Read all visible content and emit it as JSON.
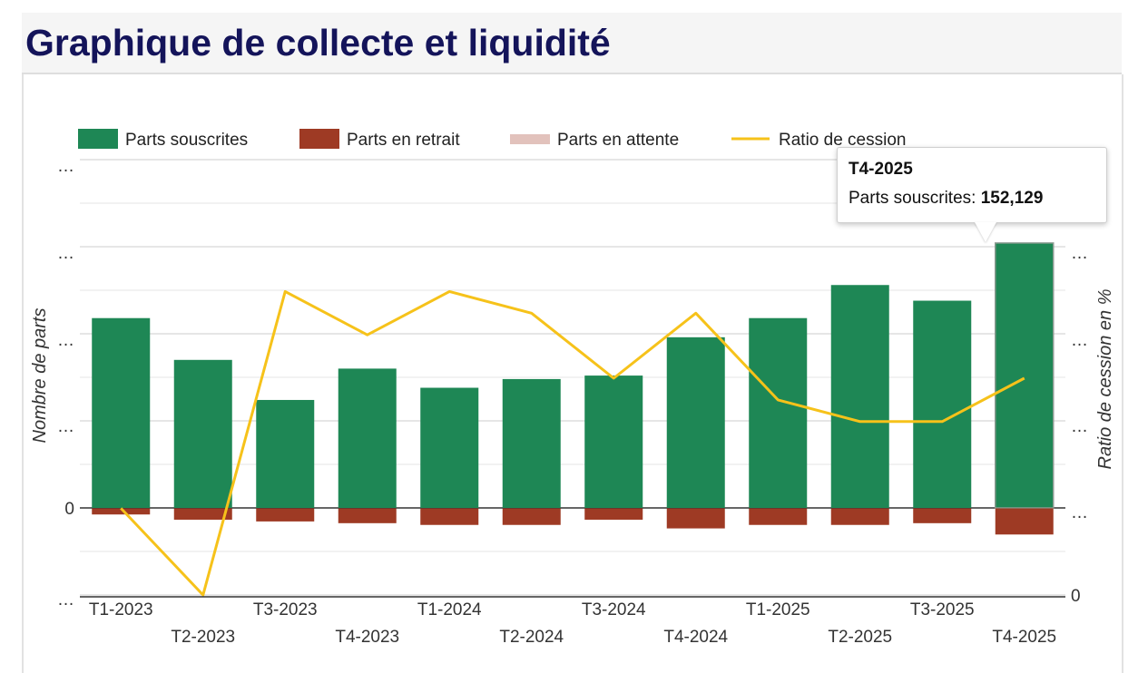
{
  "title": "Graphique de collecte et liquidité",
  "legend": [
    {
      "label": "Parts souscrites",
      "color": "#1e8755"
    },
    {
      "label": "Parts en retrait",
      "color": "#9e3a24"
    },
    {
      "label": "Parts en attente",
      "color": "#e2c2bc"
    },
    {
      "label": "Ratio de cession",
      "color": "#f6c21a"
    }
  ],
  "axes": {
    "left_title": "Nombre de parts",
    "right_title": "Ratio de cession en %",
    "left_ticks": [
      "…",
      "…",
      "…",
      "…",
      "0",
      "…"
    ],
    "right_ticks": [
      "…",
      "…",
      "…",
      "…",
      "0"
    ]
  },
  "tooltip": {
    "title": "T4-2025",
    "label": "Parts souscrites:",
    "value": "152,129"
  },
  "chart_data": {
    "type": "bar",
    "title": "Graphique de collecte et liquidité",
    "categories": [
      "T1-2023",
      "T2-2023",
      "T3-2023",
      "T4-2023",
      "T1-2024",
      "T2-2024",
      "T3-2024",
      "T4-2024",
      "T1-2025",
      "T2-2025",
      "T3-2025",
      "T4-2025"
    ],
    "ylim": [
      -50000,
      200000
    ],
    "y2lim": [
      0,
      100
    ],
    "series": [
      {
        "name": "Parts souscrites",
        "type": "bar",
        "stacked": true,
        "color": "#1e8755",
        "values": [
          109000,
          85000,
          62000,
          80000,
          69000,
          74000,
          76000,
          98000,
          109000,
          128000,
          119000,
          152129
        ]
      },
      {
        "name": "Parts en retrait",
        "type": "bar",
        "stacked": true,
        "color": "#9e3a24",
        "values": [
          -3500,
          -6500,
          -7500,
          -8500,
          -9500,
          -9500,
          -6500,
          -11500,
          -9500,
          -9500,
          -8500,
          -15000
        ]
      },
      {
        "name": "Parts en attente",
        "type": "bar",
        "stacked": true,
        "color": "#e2c2bc",
        "values": [
          0,
          0,
          0,
          0,
          0,
          0,
          0,
          0,
          0,
          0,
          0,
          0
        ]
      },
      {
        "name": "Ratio de cession",
        "type": "line",
        "axis": "right",
        "color": "#f6c21a",
        "values": [
          20,
          0,
          70,
          60,
          70,
          65,
          50,
          65,
          45,
          40,
          40,
          50
        ]
      }
    ]
  }
}
